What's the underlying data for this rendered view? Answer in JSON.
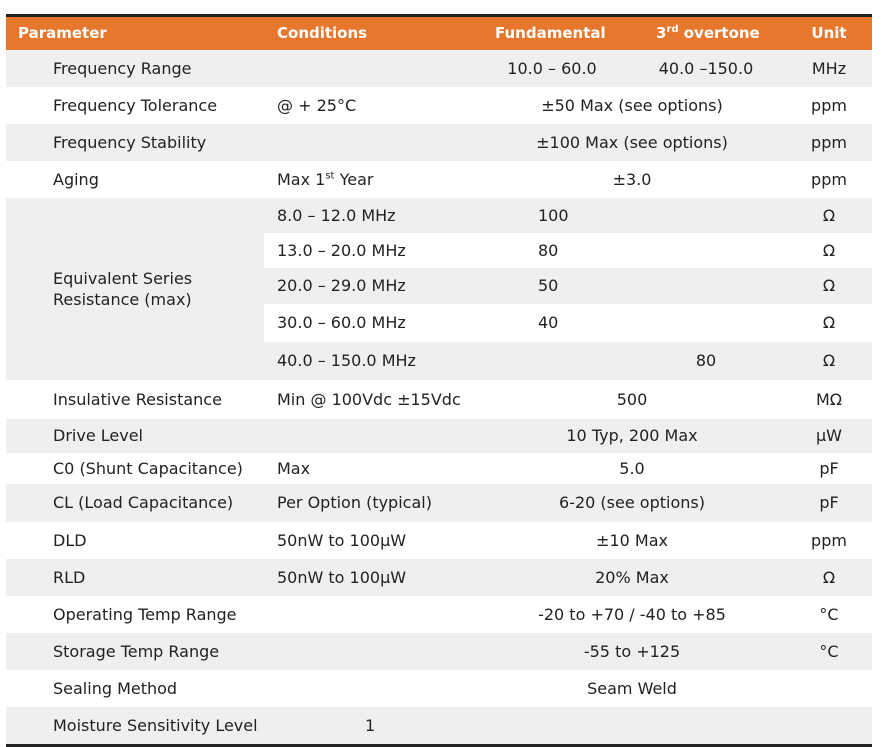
{
  "header": {
    "parameter": "Parameter",
    "conditions": "Conditions",
    "fundamental": "Fundamental",
    "overtone_prefix": "3",
    "overtone_sup": "rd",
    "overtone_suffix": " overtone",
    "unit": "Unit"
  },
  "rows": {
    "freq_range": {
      "param": "Frequency Range",
      "fund": "10.0 – 60.0",
      "over": "40.0 –150.0",
      "unit": "MHz"
    },
    "freq_tol": {
      "param": "Frequency Tolerance",
      "cond": "@ + 25°C",
      "value": "±50 Max (see options)",
      "unit": "ppm"
    },
    "freq_stab": {
      "param": "Frequency Stability",
      "value": "±100 Max (see options)",
      "unit": "ppm"
    },
    "aging": {
      "param": "Aging",
      "cond_prefix": "Max 1",
      "cond_sup": "st",
      "cond_suffix": " Year",
      "value": "±3.0",
      "unit": "ppm"
    },
    "esr": {
      "param": "Equivalent Series Resistance (max)",
      "sub": [
        {
          "cond": "8.0 – 12.0 MHz",
          "value": "100",
          "unit": "Ω"
        },
        {
          "cond": "13.0 – 20.0 MHz",
          "value": "80",
          "unit": "Ω"
        },
        {
          "cond": "20.0 – 29.0 MHz",
          "value": "50",
          "unit": "Ω"
        },
        {
          "cond": "30.0 – 60.0 MHz",
          "value": "40",
          "unit": "Ω"
        },
        {
          "cond": "40.0 – 150.0 MHz",
          "value": "80",
          "unit": "Ω"
        }
      ]
    },
    "insul": {
      "param": "Insulative Resistance",
      "cond": "Min @ 100Vdc ±15Vdc",
      "value": "500",
      "unit": "MΩ"
    },
    "drive": {
      "param": "Drive Level",
      "value": "10 Typ, 200 Max",
      "unit": "µW"
    },
    "c0": {
      "param": "C0 (Shunt Capacitance)",
      "cond": "Max",
      "value": "5.0",
      "unit": "pF"
    },
    "cl": {
      "param": "CL (Load Capacitance)",
      "cond": "Per Option (typical)",
      "value": "6-20 (see options)",
      "unit": "pF"
    },
    "dld": {
      "param": "DLD",
      "cond": "50nW to 100µW",
      "value": "±10 Max",
      "unit": "ppm"
    },
    "rld": {
      "param": "RLD",
      "cond": "50nW to 100µW",
      "value": "20% Max",
      "unit": "Ω"
    },
    "op_temp": {
      "param": "Operating Temp Range",
      "value": "-20 to +70 / -40 to +85",
      "unit": "°C"
    },
    "st_temp": {
      "param": "Storage Temp Range",
      "value": "-55 to +125",
      "unit": "°C"
    },
    "seal": {
      "param": "Sealing Method",
      "value": "Seam Weld"
    },
    "msl": {
      "param": "Moisture Sensitivity Level",
      "value": "1"
    }
  }
}
